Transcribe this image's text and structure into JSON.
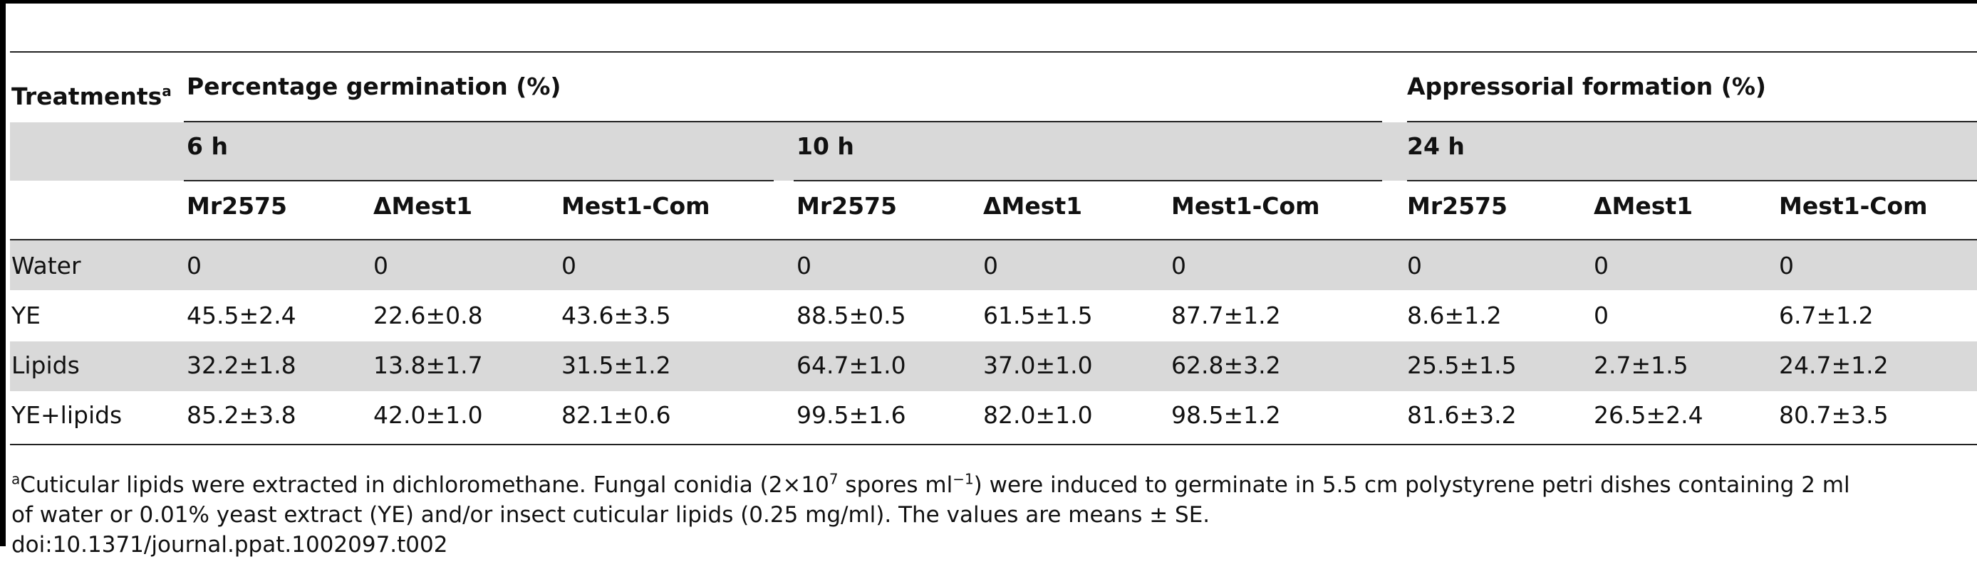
{
  "table": {
    "treatments_label": "Treatments",
    "treatments_sup": "a",
    "group_germination": "Percentage germination (%)",
    "group_appressorial": "Appressorial formation (%)",
    "times": [
      "6 h",
      "10 h",
      "24 h"
    ],
    "strains": [
      "Mr2575",
      "ΔMest1",
      "Mest1-Com"
    ],
    "rows": [
      {
        "label": "Water",
        "values": [
          "0",
          "0",
          "0",
          "0",
          "0",
          "0",
          "0",
          "0",
          "0"
        ]
      },
      {
        "label": "YE",
        "values": [
          "45.5±2.4",
          "22.6±0.8",
          "43.6±3.5",
          "88.5±0.5",
          "61.5±1.5",
          "87.7±1.2",
          "8.6±1.2",
          "0",
          "6.7±1.2"
        ]
      },
      {
        "label": "Lipids",
        "values": [
          "32.2±1.8",
          "13.8±1.7",
          "31.5±1.2",
          "64.7±1.0",
          "37.0±1.0",
          "62.8±3.2",
          "25.5±1.5",
          "2.7±1.5",
          "24.7±1.2"
        ]
      },
      {
        "label": "YE+lipids",
        "values": [
          "85.2±3.8",
          "42.0±1.0",
          "82.1±0.6",
          "99.5±1.6",
          "82.0±1.0",
          "98.5±1.2",
          "81.6±3.2",
          "26.5±2.4",
          "80.7±3.5"
        ]
      }
    ]
  },
  "footnote": {
    "marker": "a",
    "line1_a": "Cuticular lipids were extracted in dichloromethane. Fungal conidia (2×10",
    "line1_exp1": "7",
    "line1_b": " spores ml",
    "line1_exp2": "−1",
    "line1_c": ") were induced to germinate in 5.5 cm polystyrene petri dishes containing 2 ml",
    "line2": " of water or 0.01% yeast extract (YE) and/or insect cuticular lipids (0.25 mg/ml). The values are means ± SE.",
    "doi": "doi:10.1371/journal.ppat.1002097.t002"
  }
}
